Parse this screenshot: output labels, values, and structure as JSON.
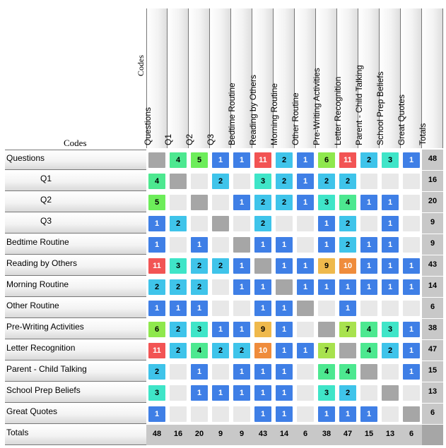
{
  "axis_title_top": "Codes",
  "axis_title_left": "Codes",
  "totals_label": "Totals",
  "codes": [
    "Questions",
    "Q1",
    "Q2",
    "Q3",
    "Bedtime Routine",
    "Reading by Others",
    "Morning Routine",
    "Other Routine",
    "Pre-Writing Activities",
    "Letter Recognition",
    "Parent - Child Talking",
    "School Prep Beliefs",
    "Great Quotes"
  ],
  "indented_rows": [
    1,
    2,
    3
  ],
  "matrix": [
    [
      null,
      4,
      5,
      1,
      1,
      11,
      2,
      1,
      6,
      11,
      2,
      3,
      1
    ],
    [
      4,
      null,
      0,
      2,
      0,
      3,
      2,
      1,
      2,
      2,
      0,
      0,
      0
    ],
    [
      5,
      0,
      null,
      0,
      1,
      2,
      2,
      1,
      3,
      4,
      1,
      1,
      0
    ],
    [
      1,
      2,
      0,
      null,
      0,
      2,
      0,
      0,
      1,
      2,
      0,
      1,
      0
    ],
    [
      1,
      0,
      1,
      0,
      null,
      1,
      1,
      0,
      1,
      2,
      1,
      1,
      0
    ],
    [
      11,
      3,
      2,
      2,
      1,
      null,
      1,
      1,
      9,
      10,
      1,
      1,
      1
    ],
    [
      2,
      2,
      2,
      0,
      1,
      1,
      null,
      1,
      1,
      1,
      1,
      1,
      1
    ],
    [
      1,
      1,
      1,
      0,
      0,
      1,
      1,
      null,
      0,
      1,
      0,
      0,
      0
    ],
    [
      6,
      2,
      3,
      1,
      1,
      9,
      1,
      0,
      null,
      7,
      4,
      3,
      1
    ],
    [
      11,
      2,
      4,
      2,
      2,
      10,
      1,
      1,
      7,
      null,
      4,
      2,
      1
    ],
    [
      2,
      0,
      1,
      0,
      1,
      1,
      1,
      0,
      4,
      4,
      null,
      0,
      1
    ],
    [
      3,
      0,
      1,
      1,
      1,
      1,
      1,
      0,
      3,
      2,
      0,
      null,
      0
    ],
    [
      1,
      0,
      0,
      0,
      0,
      1,
      1,
      0,
      1,
      1,
      1,
      0,
      null
    ]
  ],
  "row_totals": [
    48,
    16,
    20,
    9,
    9,
    43,
    14,
    6,
    38,
    47,
    15,
    13,
    6
  ],
  "col_totals": [
    48,
    16,
    20,
    9,
    9,
    43,
    14,
    6,
    38,
    47,
    15,
    13,
    6
  ],
  "colors": {
    "v1": "#3f7fe6",
    "v2": "#3fc4ea",
    "v3": "#3fe5c8",
    "v4": "#4de890",
    "v5": "#6ded5a",
    "v6": "#8fe84d",
    "v7": "#a8e24e",
    "v9": "#efb94c",
    "v10": "#ef8c3c",
    "v11": "#f25454",
    "empty": "#e8e8e8",
    "diagonal": "#a6a6a6",
    "totals_bg": "#c8c8c8"
  }
}
